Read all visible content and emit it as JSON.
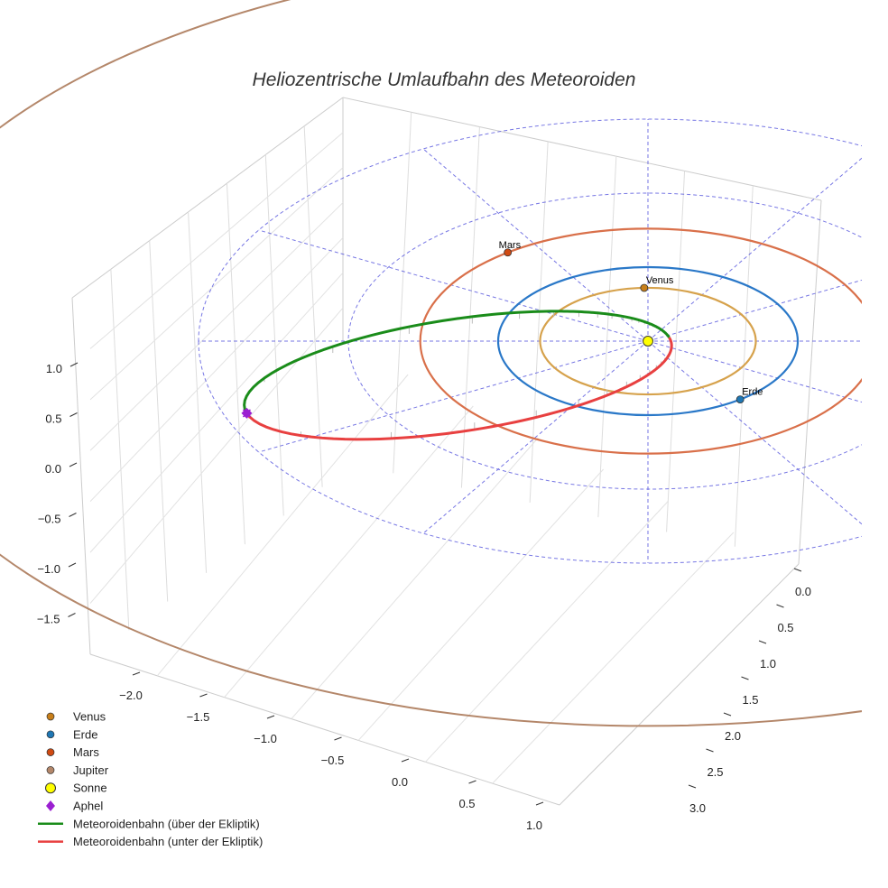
{
  "chart_data": {
    "type": "line3d",
    "title": "Heliozentrische Umlaufbahn des Meteoroiden",
    "axes": {
      "x": {
        "ticks": [
          -2.0,
          -1.5,
          -1.0,
          -0.5,
          0.0,
          0.5,
          1.0
        ],
        "tick_labels": [
          "−2.0",
          "−1.5",
          "−1.0",
          "−0.5",
          "0.0",
          "0.5",
          "1.0"
        ]
      },
      "y": {
        "ticks": [
          0.0,
          0.5,
          1.0,
          1.5,
          2.0,
          2.5,
          3.0
        ],
        "tick_labels": [
          "0.0",
          "0.5",
          "1.0",
          "1.5",
          "2.0",
          "2.5",
          "3.0"
        ]
      },
      "z": {
        "ticks": [
          1.0,
          0.5,
          0.0,
          -0.5,
          -1.0,
          -1.5
        ],
        "tick_labels": [
          "1.0",
          "0.5",
          "0.0",
          "−0.5",
          "−1.0",
          "−1.5"
        ]
      }
    },
    "ecliptic_grid": {
      "rings": [
        1.0,
        2.0,
        3.0
      ],
      "spokes_deg_step": 30,
      "style": "dashed",
      "color": "#5555dd"
    },
    "planet_orbits": [
      {
        "name": "Venus",
        "radius": 0.72,
        "color": "#d6a24c"
      },
      {
        "name": "Erde",
        "radius": 1.0,
        "color": "#2a78c8"
      },
      {
        "name": "Mars",
        "radius": 1.52,
        "color": "#d9704a"
      },
      {
        "name": "Jupiter",
        "radius": 5.2,
        "color": "#b4876a"
      }
    ],
    "planets": [
      {
        "name": "Venus",
        "label": "Venus",
        "angle_deg": 92,
        "color": "#c87f1a"
      },
      {
        "name": "Erde",
        "label": "Erde",
        "angle_deg": -52,
        "color": "#1f77b4"
      },
      {
        "name": "Mars",
        "label": "Mars",
        "angle_deg": 128,
        "color": "#d04a12"
      }
    ],
    "sun": {
      "label": "Sonne",
      "color": "#ffff00"
    },
    "meteoroid_orbit": {
      "a": 1.5,
      "e": 0.9,
      "inclination_deg": 12,
      "perihelion_angle_deg": 20
    },
    "aphel": {
      "label": "Aphel",
      "color": "#9b1fd1"
    },
    "legend": [
      {
        "label": "Venus",
        "marker": "circle",
        "color": "#c87f1a"
      },
      {
        "label": "Erde",
        "marker": "circle",
        "color": "#1f77b4"
      },
      {
        "label": "Mars",
        "marker": "circle",
        "color": "#d04a12"
      },
      {
        "label": "Jupiter",
        "marker": "circle",
        "color": "#b4876a"
      },
      {
        "label": "Sonne",
        "marker": "circle-large",
        "color": "#ffff00"
      },
      {
        "label": "Aphel",
        "marker": "diamond",
        "color": "#9b1fd1"
      },
      {
        "label": "Meteoroidenbahn (über der Ekliptik)",
        "marker": "line",
        "color": "#1a8c1a"
      },
      {
        "label": "Meteoroidenbahn (unter der Ekliptik)",
        "marker": "line",
        "color": "#e84040"
      }
    ]
  }
}
